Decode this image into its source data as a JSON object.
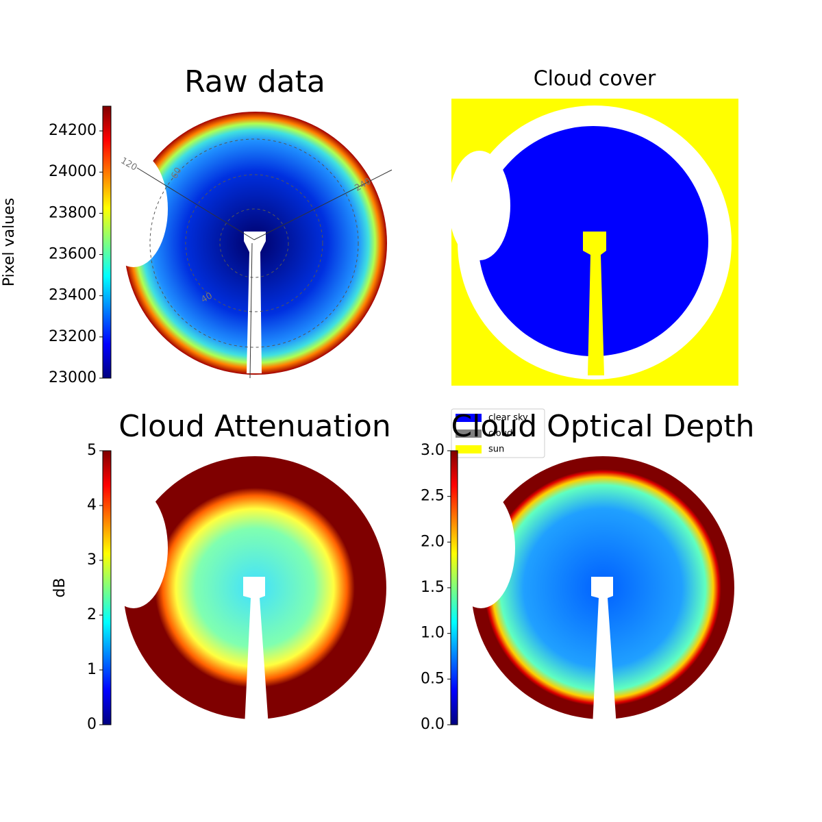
{
  "chart_data": [
    {
      "type": "image",
      "title": "Raw data",
      "ylabel": "Pixel values",
      "colormap": "jet",
      "ylim": [
        23000,
        24320
      ],
      "yticks": [
        23000,
        23200,
        23400,
        23600,
        23800,
        24000,
        24200
      ],
      "annotations": [
        "120",
        "60",
        "240",
        "40"
      ]
    },
    {
      "type": "image",
      "title": "Cloud cover",
      "series": [
        {
          "name": "clear sky",
          "color": "#0000ff"
        },
        {
          "name": "cloud",
          "color": "#808080"
        },
        {
          "name": "sun",
          "color": "#ffff00"
        }
      ]
    },
    {
      "type": "image",
      "title": "Cloud Attenuation",
      "ylabel": "dB",
      "colormap": "jet",
      "ylim": [
        0,
        5
      ],
      "yticks": [
        0,
        1,
        2,
        3,
        4,
        5
      ]
    },
    {
      "type": "image",
      "title": "Cloud Optical Depth",
      "colormap": "jet",
      "ylim": [
        0,
        3
      ],
      "yticks": [
        {
          "value": 0,
          "label": "0.0"
        },
        0.5,
        {
          "value": 1,
          "label": "1.0"
        },
        1.5,
        {
          "value": 2,
          "label": "2.0"
        },
        2.5,
        {
          "value": 3,
          "label": "3.0"
        }
      ]
    }
  ]
}
